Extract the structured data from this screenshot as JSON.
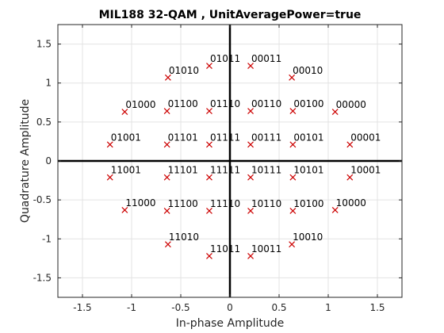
{
  "chart_data": {
    "type": "scatter",
    "title": "MIL188 32-QAM , UnitAveragePower=true",
    "xlabel": "In-phase Amplitude",
    "ylabel": "Quadrature Amplitude",
    "xlim": [
      -1.75,
      1.75
    ],
    "ylim": [
      -1.75,
      1.75
    ],
    "xticks": [
      -1.5,
      -1,
      -0.5,
      0,
      0.5,
      1,
      1.5
    ],
    "yticks": [
      -1.5,
      -1,
      -0.5,
      0,
      0.5,
      1,
      1.5
    ],
    "xtick_labels": [
      "-1.5",
      "-1",
      "-0.5",
      "0",
      "0.5",
      "1",
      "1.5"
    ],
    "ytick_labels": [
      "-1.5",
      "-1",
      "-0.5",
      "0",
      "0.5",
      "1",
      "1.5"
    ],
    "grid": true,
    "marker": "x",
    "marker_color": "#cc0000",
    "points": [
      {
        "x": 1.07,
        "y": 0.63,
        "label": "00000"
      },
      {
        "x": 1.22,
        "y": 0.21,
        "label": "00001"
      },
      {
        "x": 0.63,
        "y": 1.07,
        "label": "00010"
      },
      {
        "x": 0.21,
        "y": 1.22,
        "label": "00011"
      },
      {
        "x": 0.64,
        "y": 0.64,
        "label": "00100"
      },
      {
        "x": 0.64,
        "y": 0.21,
        "label": "00101"
      },
      {
        "x": 0.21,
        "y": 0.64,
        "label": "00110"
      },
      {
        "x": 0.21,
        "y": 0.21,
        "label": "00111"
      },
      {
        "x": -1.07,
        "y": 0.63,
        "label": "01000"
      },
      {
        "x": -1.22,
        "y": 0.21,
        "label": "01001"
      },
      {
        "x": -0.63,
        "y": 1.07,
        "label": "01010"
      },
      {
        "x": -0.21,
        "y": 1.22,
        "label": "01011"
      },
      {
        "x": -0.64,
        "y": 0.64,
        "label": "01100"
      },
      {
        "x": -0.64,
        "y": 0.21,
        "label": "01101"
      },
      {
        "x": -0.21,
        "y": 0.64,
        "label": "01110"
      },
      {
        "x": -0.21,
        "y": 0.21,
        "label": "01111"
      },
      {
        "x": 1.07,
        "y": -0.63,
        "label": "10000"
      },
      {
        "x": 1.22,
        "y": -0.21,
        "label": "10001"
      },
      {
        "x": 0.63,
        "y": -1.07,
        "label": "10010"
      },
      {
        "x": 0.21,
        "y": -1.22,
        "label": "10011"
      },
      {
        "x": 0.64,
        "y": -0.64,
        "label": "10100"
      },
      {
        "x": 0.64,
        "y": -0.21,
        "label": "10101"
      },
      {
        "x": 0.21,
        "y": -0.64,
        "label": "10110"
      },
      {
        "x": 0.21,
        "y": -0.21,
        "label": "10111"
      },
      {
        "x": -1.07,
        "y": -0.63,
        "label": "11000"
      },
      {
        "x": -1.22,
        "y": -0.21,
        "label": "11001"
      },
      {
        "x": -0.63,
        "y": -1.07,
        "label": "11010"
      },
      {
        "x": -0.21,
        "y": -1.22,
        "label": "11011"
      },
      {
        "x": -0.64,
        "y": -0.64,
        "label": "11100"
      },
      {
        "x": -0.64,
        "y": -0.21,
        "label": "11101"
      },
      {
        "x": -0.21,
        "y": -0.64,
        "label": "11110"
      },
      {
        "x": -0.21,
        "y": -0.21,
        "label": "11111"
      }
    ]
  }
}
